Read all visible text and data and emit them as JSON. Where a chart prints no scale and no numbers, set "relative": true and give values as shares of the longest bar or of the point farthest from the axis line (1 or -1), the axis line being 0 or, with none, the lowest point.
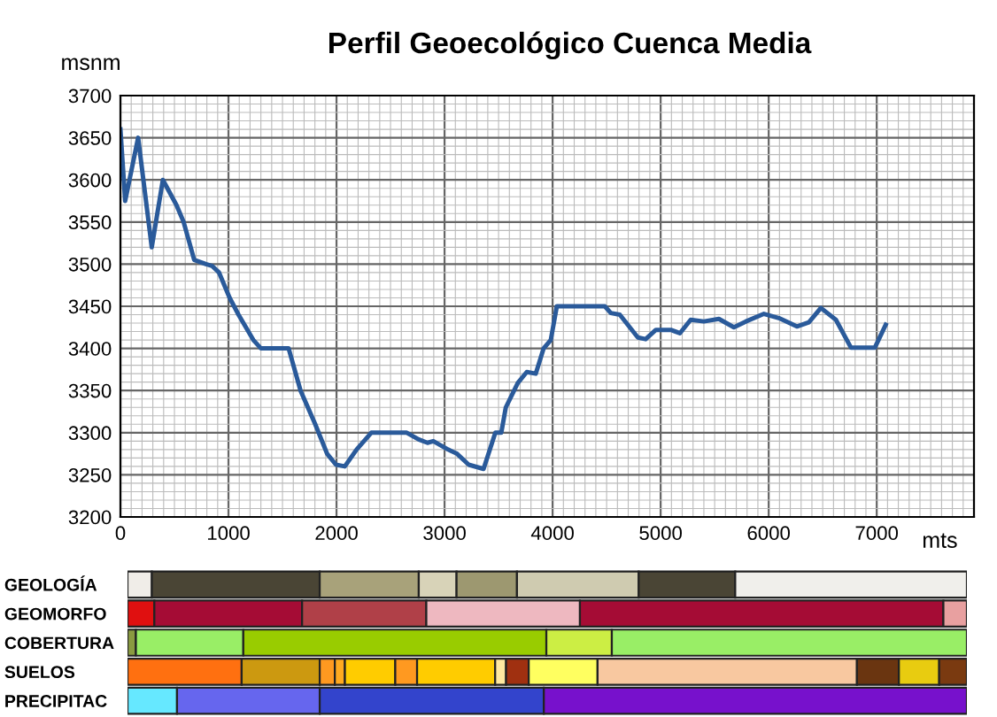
{
  "chart_data": [
    {
      "type": "line",
      "title": "Perfil Geoecológico Cuenca Media",
      "xlabel": "mts",
      "ylabel": "msnm",
      "x": [
        0,
        44,
        164,
        290,
        393,
        519,
        585,
        683,
        792,
        847,
        913,
        1011,
        1093,
        1230,
        1301,
        1557,
        1667,
        1803,
        1913,
        1995,
        2077,
        2186,
        2322,
        2541,
        2650,
        2760,
        2842,
        2896,
        3033,
        3115,
        3224,
        3361,
        3470,
        3525,
        3567,
        3678,
        3761,
        3844,
        3917,
        3983,
        4039,
        4483,
        4539,
        4622,
        4789,
        4861,
        4956,
        5094,
        5178,
        5278,
        5400,
        5539,
        5678,
        5789,
        5956,
        6094,
        6261,
        6372,
        6483,
        6622,
        6761,
        6983,
        7083
      ],
      "series": [
        {
          "color": "#2a5a9a",
          "values": [
            3660,
            3575,
            3650,
            3520,
            3600,
            3570,
            3550,
            3505,
            3500,
            3498,
            3490,
            3460,
            3440,
            3410,
            3400,
            3400,
            3350,
            3310,
            3275,
            3262,
            3260,
            3280,
            3300,
            3300,
            3300,
            3292,
            3288,
            3290,
            3280,
            3275,
            3262,
            3257,
            3300,
            3300,
            3330,
            3359,
            3372,
            3370,
            3400,
            3410,
            3450,
            3450,
            3442,
            3440,
            3413,
            3411,
            3422,
            3422,
            3418,
            3434,
            3432,
            3435,
            3425,
            3432,
            3441,
            3436,
            3426,
            3431,
            3448,
            3434,
            3401,
            3401,
            3428
          ]
        }
      ],
      "xlim": [
        0,
        7900
      ],
      "ylim": [
        3200,
        3700
      ],
      "xticks": [
        0,
        1000,
        2000,
        3000,
        4000,
        5000,
        6000,
        7000
      ],
      "yticks": [
        3200,
        3250,
        3300,
        3350,
        3400,
        3450,
        3500,
        3550,
        3600,
        3650,
        3700
      ],
      "grid": true,
      "legend": false,
      "marker": "none",
      "line_style": "solid"
    },
    {
      "type": "bar",
      "orientation": "horizontal",
      "stacked": true,
      "relative": true,
      "legend": false,
      "categories": [
        "GEOLOGÍA",
        "GEOMORFO",
        "COBERTURA",
        "SUELOS",
        "PRECIPITAC"
      ],
      "series": [
        {
          "values": [
            0.029,
            0.032,
            0.01,
            0.136,
            0.059
          ],
          "colors": [
            "#f0ede8",
            "#e01010",
            "#8a9a40",
            "#ff7010",
            "#66e8ff"
          ]
        },
        {
          "values": [
            0.2,
            0.176,
            0.128,
            0.093,
            0.17
          ],
          "colors": [
            "#4a4535",
            "#a50c35",
            "#99ee66",
            "#cc9910",
            "#6666ee"
          ]
        },
        {
          "values": [
            0.118,
            0.148,
            0.361,
            0.018,
            0.267
          ],
          "colors": [
            "#a8a27a",
            "#b04048",
            "#99cc00",
            "#ff9920",
            "#3344cc"
          ]
        },
        {
          "values": [
            0.045,
            0.183,
            0.078,
            0.012,
            0.504
          ],
          "colors": [
            "#d8d3b8",
            "#eeb8c0",
            "#ccee44",
            "#ffaa20",
            "#7711cc"
          ]
        },
        {
          "values": [
            0.072,
            0.433,
            0.423,
            0.06,
            null
          ],
          "colors": [
            "#9d9870",
            "#a50c35",
            "#99ee66",
            "#ffcc00",
            "#7711cc"
          ]
        },
        {
          "values": [
            0.145,
            0.028,
            null,
            0.026,
            null
          ],
          "colors": [
            "#cfcbb0",
            "#e8a0a0",
            "#99ee66",
            "#ff9920",
            "#7711cc"
          ]
        },
        {
          "values": [
            0.115,
            null,
            null,
            0.093,
            null
          ],
          "colors": [
            "#4a4535",
            "#e8a0a0",
            "#99ee66",
            "#ffcc00",
            "#7711cc"
          ]
        },
        {
          "values": [
            0.276,
            null,
            null,
            0.013,
            null
          ],
          "colors": [
            "#f0efeb",
            "#e8a0a0",
            "#99ee66",
            "#ffe8a0",
            "#7711cc"
          ]
        },
        {
          "values": [
            null,
            null,
            null,
            0.027,
            null
          ],
          "colors": [
            "#f0efeb",
            "#e8a0a0",
            "#99ee66",
            "#a03010",
            "#7711cc"
          ]
        },
        {
          "values": [
            null,
            null,
            null,
            0.082,
            null
          ],
          "colors": [
            "#f0efeb",
            "#e8a0a0",
            "#99ee66",
            "#ffff60",
            "#7711cc"
          ]
        },
        {
          "values": [
            null,
            null,
            null,
            0.309,
            null
          ],
          "colors": [
            "#f0efeb",
            "#e8a0a0",
            "#99ee66",
            "#f8c8a0",
            "#7711cc"
          ]
        },
        {
          "values": [
            null,
            null,
            null,
            0.05,
            null
          ],
          "colors": [
            "#f0efeb",
            "#e8a0a0",
            "#99ee66",
            "#6a3510",
            "#7711cc"
          ]
        },
        {
          "values": [
            null,
            null,
            null,
            0.048,
            null
          ],
          "colors": [
            "#f0efeb",
            "#e8a0a0",
            "#99ee66",
            "#e8cc10",
            "#7711cc"
          ]
        },
        {
          "values": [
            null,
            null,
            null,
            0.033,
            null
          ],
          "colors": [
            "#f0efeb",
            "#e8a0a0",
            "#99ee66",
            "#7a3a10",
            "#7711cc"
          ]
        }
      ]
    }
  ]
}
